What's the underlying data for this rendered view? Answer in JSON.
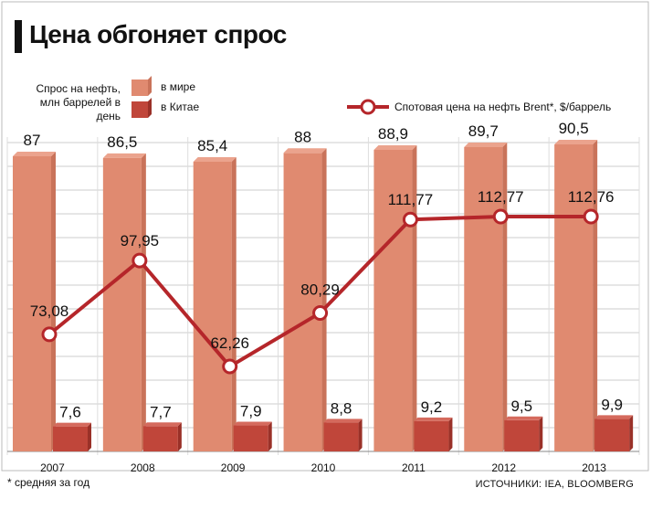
{
  "title": "Цена обгоняет спрос",
  "legend": {
    "bars_caption_line1": "Спрос на нефть,",
    "bars_caption_line2": "млн баррелей в день",
    "world_label": "в мире",
    "china_label": "в Китае",
    "line_label": "Спотовая цена на нефть Brent*, $/баррель"
  },
  "footnote": "* средняя за год",
  "source": "ИСТОЧНИКИ: IEA, BLOOMBERG",
  "colors": {
    "world_bar": "#e08a70",
    "world_bar_side": "#c9735a",
    "china_bar": "#c0463a",
    "china_bar_side": "#9a3128",
    "line": "#b5262a",
    "grid": "#cccccc"
  },
  "chart_data": {
    "type": "bar",
    "categories": [
      "2007",
      "2008",
      "2009",
      "2010",
      "2011",
      "2012",
      "2013"
    ],
    "series": [
      {
        "name": "в мире",
        "values": [
          87,
          86.5,
          85.4,
          88,
          88.9,
          89.7,
          90.5
        ],
        "labels": [
          "87",
          "86,5",
          "85,4",
          "88",
          "88,9",
          "89,7",
          "90,5"
        ]
      },
      {
        "name": "в Китае",
        "values": [
          7.6,
          7.7,
          7.9,
          8.8,
          9.2,
          9.5,
          9.9
        ],
        "labels": [
          "7,6",
          "7,7",
          "7,9",
          "8,8",
          "9,2",
          "9,5",
          "9,9"
        ]
      },
      {
        "name": "Спотовая цена на нефть Brent*, $/баррель",
        "type": "line",
        "values": [
          73.08,
          97.95,
          62.26,
          80.29,
          111.77,
          112.77,
          112.76
        ],
        "labels": [
          "73,08",
          "97,95",
          "62,26",
          "80,29",
          "111,77",
          "112,77",
          "112,76"
        ]
      }
    ],
    "grid": true
  }
}
